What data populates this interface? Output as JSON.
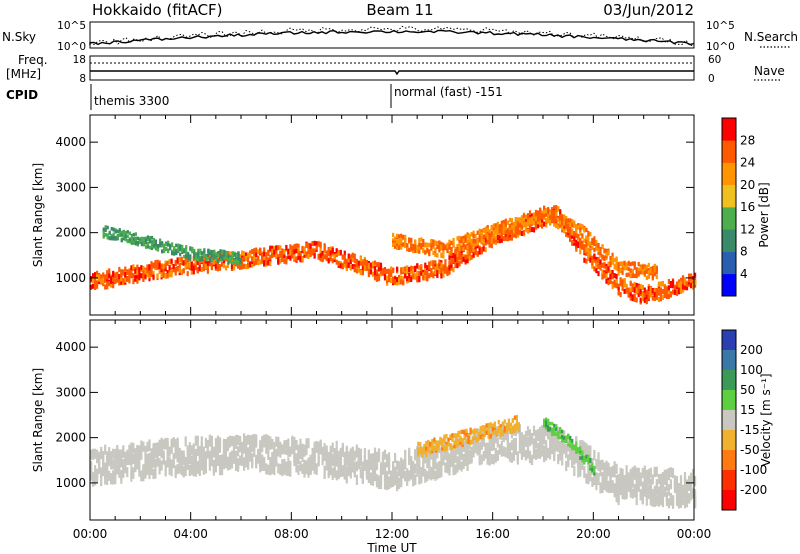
{
  "header": {
    "station": "Hokkaido (fitACF)",
    "beam": "Beam 11",
    "date": "03/Jun/2012"
  },
  "top_panels": {
    "nsky_label": "N.Sky",
    "nsky_ticks": [
      "10^5",
      "10^0"
    ],
    "nsearch_label": "N.Search",
    "nsearch_ticks": [
      "10^5",
      "10^0"
    ],
    "freq_label_1": "Freq.",
    "freq_label_2": "[MHz]",
    "freq_ticks": [
      "18",
      "8"
    ],
    "nave_label": "Nave",
    "nave_ticks": [
      "60",
      "0"
    ],
    "cpid_label": "CPID",
    "cpid_segments": [
      {
        "text": "themis 3300",
        "start_hour": 0
      },
      {
        "text": "normal (fast) -151",
        "start_hour": 12
      }
    ]
  },
  "x_axis": {
    "label": "Time UT",
    "ticks": [
      "00:00",
      "04:00",
      "08:00",
      "12:00",
      "16:00",
      "20:00",
      "00:00"
    ],
    "range_hours": [
      0,
      24
    ]
  },
  "panels": {
    "power": {
      "ylabel": "Slant Range [km]",
      "yticks": [
        "1000",
        "2000",
        "3000",
        "4000"
      ],
      "cbar_label": "Power [dB]",
      "cbar_ticks": [
        "4",
        "8",
        "12",
        "16",
        "20",
        "24",
        "28"
      ],
      "cbar_colors": [
        "#0000ff",
        "#2a5fb0",
        "#3a8a6a",
        "#4cae4c",
        "#f0c020",
        "#ff9500",
        "#ff5a00",
        "#ff0000"
      ]
    },
    "velocity": {
      "ylabel": "Slant Range [km]",
      "yticks": [
        "1000",
        "2000",
        "3000",
        "4000"
      ],
      "cbar_label": "Velocity [m s⁻¹]",
      "cbar_ticks": [
        "200",
        "100",
        "50",
        "15",
        "-15",
        "-50",
        "-100",
        "-200"
      ],
      "cbar_colors": [
        "#2a3fb0",
        "#3a78a8",
        "#3c9a58",
        "#5cd040",
        "#c8c8c0",
        "#f0b030",
        "#ff7a10",
        "#ff3000",
        "#ff0000"
      ]
    }
  },
  "chart_data": [
    {
      "type": "heatmap",
      "title": "Power",
      "xlabel": "Time UT",
      "ylabel": "Slant Range [km]",
      "xlim": [
        0,
        24
      ],
      "ylim": [
        180,
        4600
      ],
      "color_scale": {
        "label": "Power [dB]",
        "range": [
          0,
          32
        ],
        "ticks": [
          4,
          8,
          12,
          16,
          20,
          24,
          28
        ]
      },
      "bands": [
        {
          "t": [
            0,
            3,
            6,
            9,
            12,
            14,
            16,
            18.5,
            19.5,
            21,
            22,
            24
          ],
          "range_center": [
            900,
            1200,
            1400,
            1600,
            1000,
            1200,
            1900,
            2400,
            1600,
            800,
            600,
            900
          ],
          "thickness": 350,
          "power_db": 26
        },
        {
          "t": [
            0.5,
            2,
            4,
            6
          ],
          "range_center": [
            2000,
            1800,
            1500,
            1400
          ],
          "thickness": 250,
          "power_db": 12
        },
        {
          "t": [
            12,
            14,
            16,
            18,
            19.5,
            21,
            22.5
          ],
          "range_center": [
            1800,
            1600,
            2000,
            2400,
            2000,
            1200,
            1100
          ],
          "thickness": 300,
          "power_db": 24
        }
      ]
    },
    {
      "type": "heatmap",
      "title": "Velocity",
      "xlabel": "Time UT",
      "ylabel": "Slant Range [km]",
      "xlim": [
        0,
        24
      ],
      "ylim": [
        180,
        4600
      ],
      "color_scale": {
        "label": "Velocity [m s⁻¹]",
        "range": [
          -250,
          250
        ],
        "ticks": [
          200,
          100,
          50,
          15,
          -15,
          -50,
          -100,
          -200
        ]
      },
      "bands": [
        {
          "t": [
            0,
            3,
            6,
            9,
            12,
            14,
            16,
            18.5,
            21,
            24
          ],
          "range_center": [
            1400,
            1600,
            1700,
            1600,
            1300,
            1600,
            1900,
            1900,
            1000,
            900
          ],
          "thickness": 700,
          "velocity": 0
        },
        {
          "t": [
            13,
            15,
            17
          ],
          "range_center": [
            1700,
            2000,
            2300
          ],
          "thickness": 300,
          "velocity": -40
        },
        {
          "t": [
            18,
            19,
            20
          ],
          "range_center": [
            2300,
            1900,
            1300
          ],
          "thickness": 250,
          "velocity": 40
        }
      ]
    }
  ]
}
